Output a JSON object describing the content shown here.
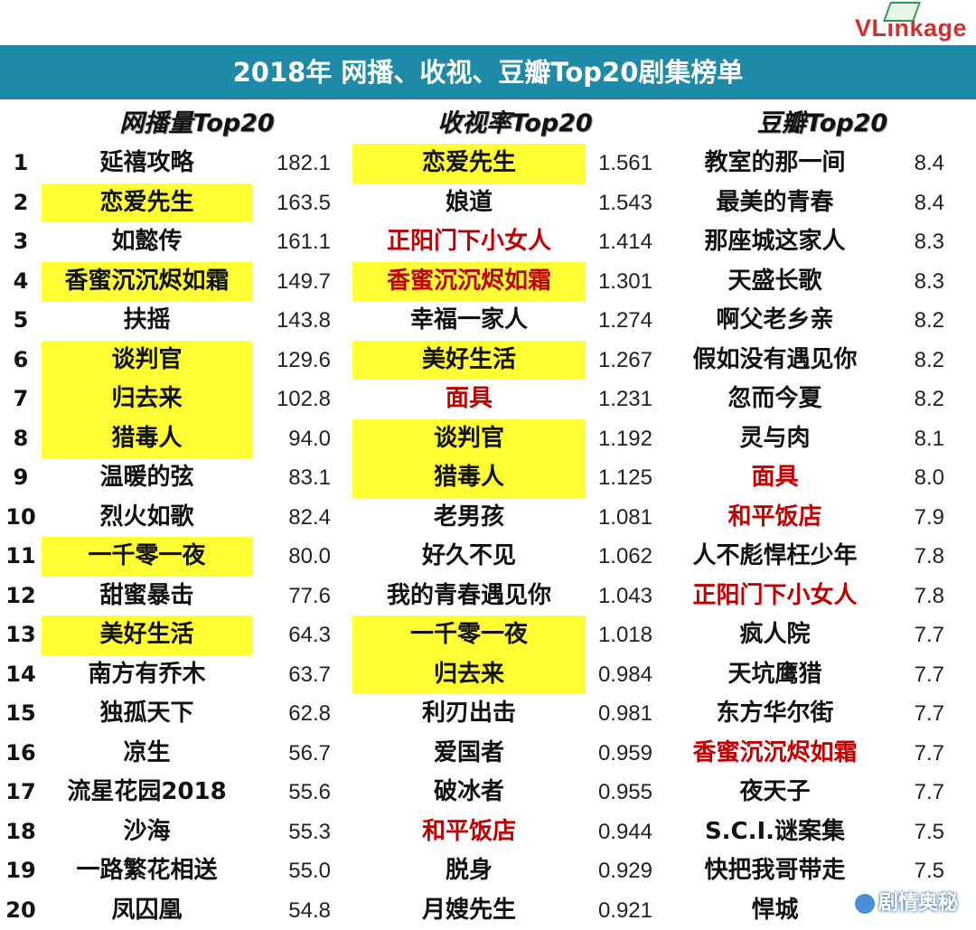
{
  "brand": {
    "logo_prefix": "VL",
    "logo_rest": "inkage"
  },
  "header": {
    "title": "2018年 网播、收视、豆瓣Top20剧集榜单"
  },
  "columns": {
    "web": {
      "heading": "网播量Top20"
    },
    "tv": {
      "heading": "收视率Top20"
    },
    "douban": {
      "heading": "豆瓣Top20"
    }
  },
  "ranks": [
    "1",
    "2",
    "3",
    "4",
    "5",
    "6",
    "7",
    "8",
    "9",
    "10",
    "11",
    "12",
    "13",
    "14",
    "15",
    "16",
    "17",
    "18",
    "19",
    "20"
  ],
  "web_rows": [
    {
      "title": "延禧攻略",
      "value": "182.1",
      "highlight": false,
      "red": false
    },
    {
      "title": "恋爱先生",
      "value": "163.5",
      "highlight": true,
      "red": false
    },
    {
      "title": "如懿传",
      "value": "161.1",
      "highlight": false,
      "red": false
    },
    {
      "title": "香蜜沉沉烬如霜",
      "value": "149.7",
      "highlight": true,
      "red": false
    },
    {
      "title": "扶摇",
      "value": "143.8",
      "highlight": false,
      "red": false
    },
    {
      "title": "谈判官",
      "value": "129.6",
      "highlight": true,
      "red": false
    },
    {
      "title": "归去来",
      "value": "102.8",
      "highlight": true,
      "red": false
    },
    {
      "title": "猎毒人",
      "value": "94.0",
      "highlight": true,
      "red": false
    },
    {
      "title": "温暖的弦",
      "value": "83.1",
      "highlight": false,
      "red": false
    },
    {
      "title": "烈火如歌",
      "value": "82.4",
      "highlight": false,
      "red": false
    },
    {
      "title": "一千零一夜",
      "value": "80.0",
      "highlight": true,
      "red": false
    },
    {
      "title": "甜蜜暴击",
      "value": "77.6",
      "highlight": false,
      "red": false
    },
    {
      "title": "美好生活",
      "value": "64.3",
      "highlight": true,
      "red": false
    },
    {
      "title": "南方有乔木",
      "value": "63.7",
      "highlight": false,
      "red": false
    },
    {
      "title": "独孤天下",
      "value": "62.8",
      "highlight": false,
      "red": false
    },
    {
      "title": "凉生",
      "value": "56.7",
      "highlight": false,
      "red": false
    },
    {
      "title": "流星花园2018",
      "value": "55.6",
      "highlight": false,
      "red": false
    },
    {
      "title": "沙海",
      "value": "55.3",
      "highlight": false,
      "red": false
    },
    {
      "title": "一路繁花相送",
      "value": "55.0",
      "highlight": false,
      "red": false
    },
    {
      "title": "凤囚凰",
      "value": "54.8",
      "highlight": false,
      "red": false
    }
  ],
  "tv_rows": [
    {
      "title": "恋爱先生",
      "value": "1.561",
      "highlight": true,
      "red": false
    },
    {
      "title": "娘道",
      "value": "1.543",
      "highlight": false,
      "red": false
    },
    {
      "title": "正阳门下小女人",
      "value": "1.414",
      "highlight": false,
      "red": true
    },
    {
      "title": "香蜜沉沉烬如霜",
      "value": "1.301",
      "highlight": true,
      "red": true
    },
    {
      "title": "幸福一家人",
      "value": "1.274",
      "highlight": false,
      "red": false
    },
    {
      "title": "美好生活",
      "value": "1.267",
      "highlight": true,
      "red": false
    },
    {
      "title": "面具",
      "value": "1.231",
      "highlight": false,
      "red": true
    },
    {
      "title": "谈判官",
      "value": "1.192",
      "highlight": true,
      "red": false
    },
    {
      "title": "猎毒人",
      "value": "1.125",
      "highlight": true,
      "red": false
    },
    {
      "title": "老男孩",
      "value": "1.081",
      "highlight": false,
      "red": false
    },
    {
      "title": "好久不见",
      "value": "1.062",
      "highlight": false,
      "red": false
    },
    {
      "title": "我的青春遇见你",
      "value": "1.043",
      "highlight": false,
      "red": false
    },
    {
      "title": "一千零一夜",
      "value": "1.018",
      "highlight": true,
      "red": false
    },
    {
      "title": "归去来",
      "value": "0.984",
      "highlight": true,
      "red": false
    },
    {
      "title": "利刃出击",
      "value": "0.981",
      "highlight": false,
      "red": false
    },
    {
      "title": "爱国者",
      "value": "0.959",
      "highlight": false,
      "red": false
    },
    {
      "title": "破冰者",
      "value": "0.955",
      "highlight": false,
      "red": false
    },
    {
      "title": "和平饭店",
      "value": "0.944",
      "highlight": false,
      "red": true
    },
    {
      "title": "脱身",
      "value": "0.929",
      "highlight": false,
      "red": false
    },
    {
      "title": "月嫂先生",
      "value": "0.921",
      "highlight": false,
      "red": false
    }
  ],
  "douban_rows": [
    {
      "title": "教室的那一间",
      "value": "8.4",
      "red": false
    },
    {
      "title": "最美的青春",
      "value": "8.4",
      "red": false
    },
    {
      "title": "那座城这家人",
      "value": "8.3",
      "red": false
    },
    {
      "title": "天盛长歌",
      "value": "8.3",
      "red": false
    },
    {
      "title": "啊父老乡亲",
      "value": "8.2",
      "red": false
    },
    {
      "title": "假如没有遇见你",
      "value": "8.2",
      "red": false
    },
    {
      "title": "忽而今夏",
      "value": "8.2",
      "red": false
    },
    {
      "title": "灵与肉",
      "value": "8.1",
      "red": false
    },
    {
      "title": "面具",
      "value": "8.0",
      "red": true
    },
    {
      "title": "和平饭店",
      "value": "7.9",
      "red": true
    },
    {
      "title": "人不彪悍枉少年",
      "value": "7.8",
      "red": false
    },
    {
      "title": "正阳门下小女人",
      "value": "7.8",
      "red": true
    },
    {
      "title": "疯人院",
      "value": "7.7",
      "red": false
    },
    {
      "title": "天坑鹰猎",
      "value": "7.7",
      "red": false
    },
    {
      "title": "东方华尔街",
      "value": "7.7",
      "red": false
    },
    {
      "title": "香蜜沉沉烬如霜",
      "value": "7.7",
      "red": true
    },
    {
      "title": "夜天子",
      "value": "7.7",
      "red": false
    },
    {
      "title": "S.C.I.谜案集",
      "value": "7.5",
      "red": false
    },
    {
      "title": "快把我哥带走",
      "value": "7.5",
      "red": false
    },
    {
      "title": "悍城",
      "value": "",
      "red": false
    }
  ],
  "watermark": {
    "text": "剧情奥秘"
  },
  "colors": {
    "banner": "#1e8aa6",
    "highlight": "#ffff33",
    "red_text": "#c00000"
  }
}
